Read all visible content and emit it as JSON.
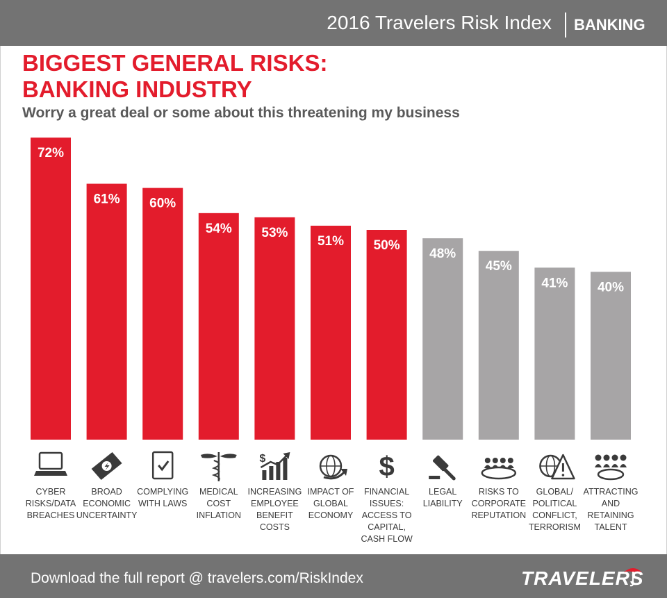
{
  "header": {
    "report_title": "2016 Travelers Risk Index",
    "industry": "BANKING"
  },
  "headline": {
    "line1": "BIGGEST GENERAL RISKS:",
    "line2": "BANKING INDUSTRY"
  },
  "chart_data": {
    "type": "bar",
    "title": "BIGGEST GENERAL RISKS: BANKING INDUSTRY",
    "subtitle": "Worry a great deal or some about this threatening my business",
    "ylim": [
      0,
      100
    ],
    "unit": "%",
    "grid": false,
    "categories": [
      "CYBER RISKS/DATA BREACHES",
      "BROAD ECONOMIC UNCERTAINTY",
      "COMPLYING WITH LAWS",
      "MEDICAL COST INFLATION",
      "INCREASING EMPLOYEE BENEFIT COSTS",
      "IMPACT OF GLOBAL ECONOMY",
      "FINANCIAL ISSUES: ACCESS TO CAPITAL, CASH FLOW",
      "LEGAL LIABILITY",
      "RISKS TO CORPORATE REPUTATION",
      "GLOBAL/ POLITICAL CONFLICT, TERRORISM",
      "ATTRACTING AND RETAINING TALENT"
    ],
    "category_lines": [
      [
        "CYBER",
        "RISKS/DATA",
        "BREACHES"
      ],
      [
        "BROAD",
        "ECONOMIC",
        "UNCERTAINTY"
      ],
      [
        "COMPLYING",
        "WITH LAWS"
      ],
      [
        "MEDICAL",
        "COST",
        "INFLATION"
      ],
      [
        "INCREASING",
        "EMPLOYEE",
        "BENEFIT",
        "COSTS"
      ],
      [
        "IMPACT OF",
        "GLOBAL",
        "ECONOMY"
      ],
      [
        "FINANCIAL",
        "ISSUES:",
        "ACCESS TO",
        "CAPITAL,",
        "CASH FLOW"
      ],
      [
        "LEGAL",
        "LIABILITY"
      ],
      [
        "RISKS TO",
        "CORPORATE",
        "REPUTATION"
      ],
      [
        "GLOBAL/",
        "POLITICAL",
        "CONFLICT,",
        "TERRORISM"
      ],
      [
        "ATTRACTING",
        "AND",
        "RETAINING",
        "TALENT"
      ]
    ],
    "values": [
      72,
      61,
      60,
      54,
      53,
      51,
      50,
      48,
      45,
      41,
      40
    ],
    "value_labels": [
      "72%",
      "61%",
      "60%",
      "54%",
      "53%",
      "51%",
      "50%",
      "48%",
      "45%",
      "41%",
      "40%"
    ],
    "highlighted": [
      true,
      true,
      true,
      true,
      true,
      true,
      true,
      false,
      false,
      false,
      false
    ],
    "icons": [
      "laptop-icon",
      "money-bolt-icon",
      "checklist-icon",
      "caduceus-icon",
      "rising-chart-icon",
      "globe-arrow-icon",
      "dollar-sign-icon",
      "gavel-icon",
      "meeting-icon",
      "globe-warning-icon",
      "team-icon"
    ]
  },
  "colors": {
    "highlight": "#e31c2c",
    "muted": "#a7a5a6",
    "bar_gray_header": "#737373",
    "icon": "#3a3a3a"
  },
  "footer": {
    "text": "Download the full report @ travelers.com/RiskIndex",
    "brand": "TRAVELERS"
  }
}
